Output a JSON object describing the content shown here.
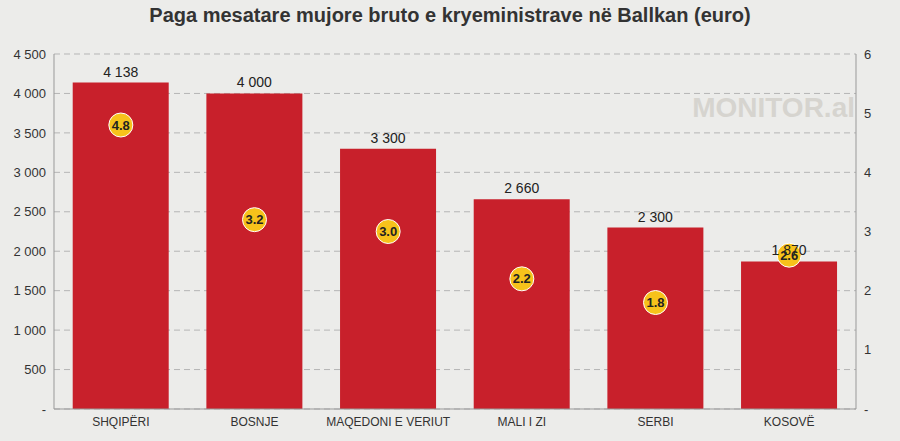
{
  "chart_data": {
    "type": "bar",
    "title": "Paga mesatare mujore bruto e kryeministrave në Ballkan (euro)",
    "categories": [
      "SHQIPËRI",
      "BOSNJE",
      "MAQEDONI E VERIUT",
      "MALI I ZI",
      "SERBI",
      "KOSOVË"
    ],
    "series": [
      {
        "type": "bar",
        "color": "#c8202b",
        "values": [
          4138,
          4000,
          3300,
          2660,
          2300,
          1870
        ],
        "value_labels": [
          "4 138",
          "4 000",
          "3 300",
          "2 660",
          "2 300",
          "1 870"
        ]
      },
      {
        "type": "scatter",
        "axis": "y2",
        "color": "#f7c21b",
        "marker": "circle",
        "values": [
          4.8,
          3.2,
          3.0,
          2.2,
          1.8,
          2.6
        ],
        "value_labels": [
          "4.8",
          "3.2",
          "3.0",
          "2.2",
          "1.8",
          "2.6"
        ]
      }
    ],
    "ylim": [
      0,
      4500
    ],
    "yticks": [
      {
        "value": 0,
        "label": "-"
      },
      500,
      {
        "value": 1000,
        "label": "1 000"
      },
      {
        "value": 1500,
        "label": "1 500"
      },
      {
        "value": 2000,
        "label": "2 000"
      },
      {
        "value": 2500,
        "label": "2 500"
      },
      {
        "value": 3000,
        "label": "3 000"
      },
      {
        "value": 3500,
        "label": "3 500"
      },
      {
        "value": 4000,
        "label": "4 000"
      },
      {
        "value": 4500,
        "label": "4 500"
      }
    ],
    "y2lim": [
      0,
      6
    ],
    "y2ticks": [
      {
        "value": 0,
        "label": "-"
      },
      1,
      2,
      3,
      4,
      5,
      6
    ],
    "grid": true,
    "data_labels": true,
    "annotations": [
      "MONITOR.al"
    ]
  }
}
